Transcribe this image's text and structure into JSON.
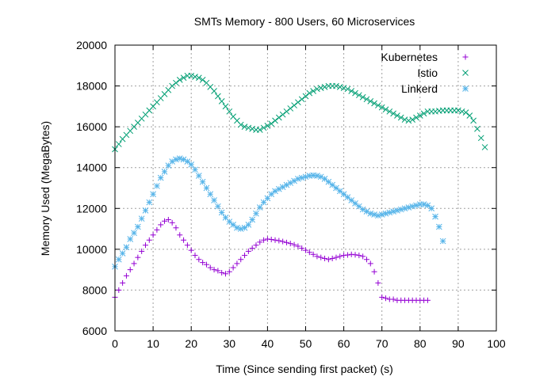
{
  "chart_data": {
    "type": "scatter",
    "title": "SMTs Memory - 800 Users, 60 Microservices",
    "xlabel": "Time (Since sending first packet) (s)",
    "ylabel": "Memory Used (MegaBytes)",
    "xlim": [
      0,
      100
    ],
    "ylim": [
      6000,
      20000
    ],
    "xticks": [
      "0",
      "10",
      "20",
      "30",
      "40",
      "50",
      "60",
      "70",
      "80",
      "90",
      "100"
    ],
    "yticks": [
      "6000",
      "8000",
      "10000",
      "12000",
      "14000",
      "16000",
      "18000",
      "20000"
    ],
    "grid": true,
    "legend_position": "top-right",
    "series": [
      {
        "name": "Kubernetes",
        "marker": "plus",
        "color": "#9400d3",
        "x": [
          0,
          1,
          2,
          3,
          4,
          5,
          6,
          7,
          8,
          9,
          10,
          11,
          12,
          13,
          14,
          15,
          16,
          17,
          18,
          19,
          20,
          21,
          22,
          23,
          24,
          25,
          26,
          27,
          28,
          29,
          30,
          31,
          32,
          33,
          34,
          35,
          36,
          37,
          38,
          39,
          40,
          41,
          42,
          43,
          44,
          45,
          46,
          47,
          48,
          49,
          50,
          51,
          52,
          53,
          54,
          55,
          56,
          57,
          58,
          59,
          60,
          61,
          62,
          63,
          64,
          65,
          66,
          67,
          68,
          69,
          70,
          71,
          72,
          73,
          74,
          75,
          76,
          77,
          78,
          79,
          80,
          81,
          82
        ],
        "y": [
          7650,
          8000,
          8350,
          8700,
          9000,
          9300,
          9600,
          9900,
          10200,
          10450,
          10700,
          10950,
          11200,
          11380,
          11450,
          11300,
          11050,
          10700,
          10450,
          10200,
          9950,
          9700,
          9500,
          9350,
          9250,
          9100,
          9000,
          8950,
          8850,
          8800,
          8900,
          9100,
          9300,
          9500,
          9700,
          9900,
          10050,
          10200,
          10350,
          10450,
          10500,
          10480,
          10450,
          10420,
          10380,
          10330,
          10280,
          10220,
          10150,
          10050,
          9950,
          9850,
          9750,
          9650,
          9600,
          9550,
          9500,
          9550,
          9600,
          9650,
          9700,
          9720,
          9750,
          9730,
          9700,
          9650,
          9500,
          9300,
          8900,
          8350,
          7650,
          7600,
          7550,
          7550,
          7500,
          7500,
          7500,
          7500,
          7500,
          7500,
          7500,
          7500,
          7500
        ]
      },
      {
        "name": "Istio",
        "marker": "x",
        "color": "#009e73",
        "x": [
          0,
          1,
          2,
          3,
          4,
          5,
          6,
          7,
          8,
          9,
          10,
          11,
          12,
          13,
          14,
          15,
          16,
          17,
          18,
          19,
          20,
          21,
          22,
          23,
          24,
          25,
          26,
          27,
          28,
          29,
          30,
          31,
          32,
          33,
          34,
          35,
          36,
          37,
          38,
          39,
          40,
          41,
          42,
          43,
          44,
          45,
          46,
          47,
          48,
          49,
          50,
          51,
          52,
          53,
          54,
          55,
          56,
          57,
          58,
          59,
          60,
          61,
          62,
          63,
          64,
          65,
          66,
          67,
          68,
          69,
          70,
          71,
          72,
          73,
          74,
          75,
          76,
          77,
          78,
          79,
          80,
          81,
          82,
          83,
          84,
          85,
          86,
          87,
          88,
          89,
          90,
          91,
          92,
          93,
          94,
          95,
          96,
          97
        ],
        "y": [
          14900,
          15150,
          15400,
          15600,
          15800,
          16000,
          16200,
          16400,
          16600,
          16800,
          17000,
          17200,
          17400,
          17600,
          17800,
          18000,
          18150,
          18300,
          18400,
          18500,
          18500,
          18450,
          18400,
          18300,
          18150,
          17950,
          17750,
          17500,
          17250,
          17000,
          16750,
          16500,
          16300,
          16100,
          16000,
          15950,
          15900,
          15850,
          15850,
          15950,
          16050,
          16150,
          16300,
          16450,
          16600,
          16750,
          16900,
          17050,
          17200,
          17350,
          17500,
          17650,
          17750,
          17850,
          17900,
          17950,
          18000,
          18000,
          18000,
          17950,
          17900,
          17850,
          17750,
          17650,
          17550,
          17450,
          17350,
          17250,
          17150,
          17050,
          16950,
          16850,
          16750,
          16650,
          16550,
          16450,
          16350,
          16300,
          16350,
          16450,
          16550,
          16650,
          16750,
          16750,
          16750,
          16780,
          16800,
          16800,
          16800,
          16800,
          16800,
          16750,
          16700,
          16550,
          16300,
          15900,
          15450,
          15000
        ]
      },
      {
        "name": "Linkerd",
        "marker": "star",
        "color": "#56b4e9",
        "x": [
          0,
          1,
          2,
          3,
          4,
          5,
          6,
          7,
          8,
          9,
          10,
          11,
          12,
          13,
          14,
          15,
          16,
          17,
          18,
          19,
          20,
          21,
          22,
          23,
          24,
          25,
          26,
          27,
          28,
          29,
          30,
          31,
          32,
          33,
          34,
          35,
          36,
          37,
          38,
          39,
          40,
          41,
          42,
          43,
          44,
          45,
          46,
          47,
          48,
          49,
          50,
          51,
          52,
          53,
          54,
          55,
          56,
          57,
          58,
          59,
          60,
          61,
          62,
          63,
          64,
          65,
          66,
          67,
          68,
          69,
          70,
          71,
          72,
          73,
          74,
          75,
          76,
          77,
          78,
          79,
          80,
          81,
          82,
          83,
          84,
          85,
          86
        ],
        "y": [
          9150,
          9500,
          9800,
          10100,
          10500,
          10800,
          11100,
          11500,
          11900,
          12300,
          12700,
          13100,
          13500,
          13800,
          14100,
          14300,
          14400,
          14450,
          14400,
          14300,
          14150,
          13900,
          13600,
          13300,
          13000,
          12700,
          12400,
          12100,
          11800,
          11550,
          11350,
          11200,
          11050,
          11000,
          11050,
          11200,
          11450,
          11750,
          12050,
          12300,
          12500,
          12700,
          12850,
          12950,
          13050,
          13150,
          13250,
          13350,
          13450,
          13500,
          13550,
          13600,
          13620,
          13600,
          13550,
          13450,
          13300,
          13150,
          13000,
          12850,
          12700,
          12550,
          12400,
          12250,
          12100,
          11950,
          11850,
          11750,
          11700,
          11650,
          11700,
          11750,
          11800,
          11850,
          11900,
          11950,
          12000,
          12050,
          12100,
          12150,
          12200,
          12200,
          12150,
          12000,
          11600,
          11100,
          10400
        ]
      }
    ]
  }
}
